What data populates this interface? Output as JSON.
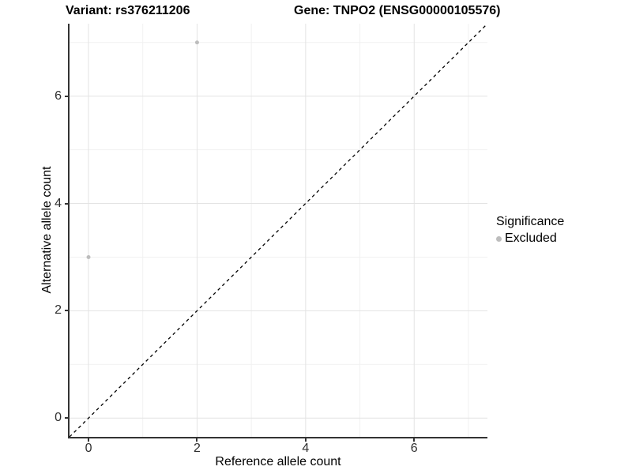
{
  "chart_data": {
    "type": "scatter",
    "title_left": "Variant: rs376211206",
    "title_right": "Gene: TNPO2 (ENSG00000105576)",
    "xlabel": "Reference allele count",
    "ylabel": "Alternative allele count",
    "xlim": [
      -0.35,
      7.35
    ],
    "ylim": [
      -0.35,
      7.35
    ],
    "x_ticks": [
      0,
      2,
      4,
      6
    ],
    "y_ticks": [
      0,
      2,
      4,
      6
    ],
    "x_minor_gridlines": [
      1,
      3,
      5,
      7
    ],
    "y_minor_gridlines": [
      1,
      3,
      5,
      7
    ],
    "grid": "major+minor",
    "series": [
      {
        "name": "Excluded",
        "color": "#bdbdbd",
        "point_radius": 2.5,
        "points": [
          [
            2,
            7
          ],
          [
            0,
            3
          ]
        ]
      }
    ],
    "identity_line": {
      "style": "dashed",
      "color": "#000000",
      "from": [
        -0.35,
        -0.35
      ],
      "to": [
        7.35,
        7.35
      ]
    },
    "legend": {
      "title": "Significance",
      "position": "right",
      "items": [
        {
          "label": "Excluded",
          "color": "#bdbdbd"
        }
      ]
    },
    "colors": {
      "grid_major": "#e3e3e3",
      "grid_minor": "#f1f1f1",
      "axis_line": "#333333",
      "tick_label": "#303030",
      "background": "#ffffff"
    }
  }
}
